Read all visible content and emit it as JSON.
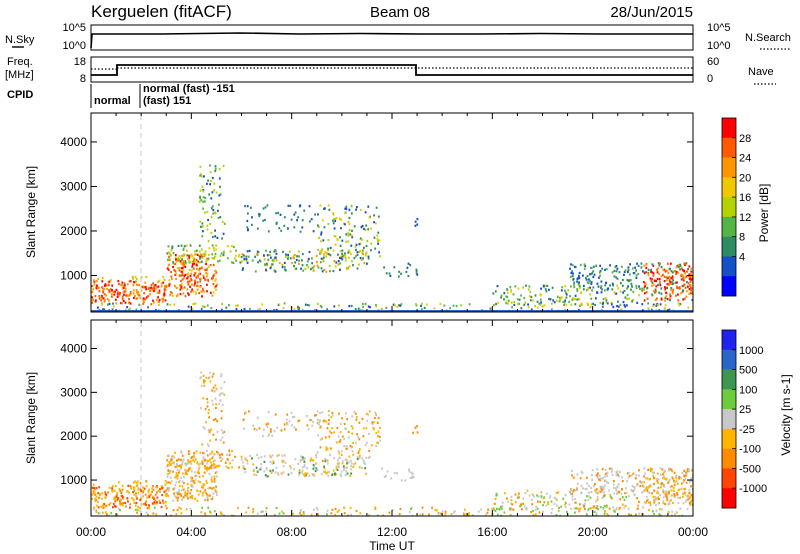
{
  "header": {
    "station": "Kerguelen (fitACF)",
    "beam": "Beam 08",
    "date": "28/Jun/2015"
  },
  "top_panels": {
    "nsky_label": "N.Sky",
    "nsky_ticks": [
      "10^5",
      "10^0"
    ],
    "nsearch_label": "N.Search",
    "nsearch_ticks": [
      "10^5",
      "10^0"
    ],
    "freq_label": "Freq.",
    "freq_unit": "[MHz]",
    "freq_ticks": [
      "18",
      "8"
    ],
    "nave_label": "Nave",
    "nave_ticks": [
      "60",
      "0"
    ],
    "cpid_label": "CPID",
    "cpid_entries": [
      "normal",
      "normal (fast) -151",
      "(fast) 151"
    ]
  },
  "power_colorbar": {
    "label": "Power [dB]",
    "ticks": [
      "28",
      "24",
      "20",
      "16",
      "12",
      "8",
      "4"
    ],
    "colors": [
      "#ff0000",
      "#ff5a00",
      "#ff9600",
      "#f0c800",
      "#b4d200",
      "#55b446",
      "#2d8c64",
      "#1450c8",
      "#0000ff"
    ]
  },
  "velocity_colorbar": {
    "label": "Velocity [m s-1]",
    "ticks": [
      "1000",
      "500",
      "100",
      "25",
      "-25",
      "-100",
      "-500",
      "-1000"
    ],
    "colors": [
      "#2222ee",
      "#2a66c8",
      "#3c9650",
      "#6ccc3c",
      "#c8c8c8",
      "#ffb400",
      "#ff8c00",
      "#ff4600",
      "#ff0000"
    ]
  },
  "chart_data": [
    {
      "type": "heatmap",
      "title": "",
      "xlabel": "Time UT",
      "ylabel": "Slant Range [km]",
      "x_ticks": [
        "00:00",
        "04:00",
        "08:00",
        "12:00",
        "16:00",
        "20:00",
        "00:00"
      ],
      "y_ticks": [
        "1000",
        "2000",
        "3000",
        "4000"
      ],
      "xlim_hours": [
        0,
        24
      ],
      "ylim_km": [
        180,
        4650
      ],
      "colorbar": "Power [dB]"
    },
    {
      "type": "heatmap",
      "title": "",
      "xlabel": "Time UT",
      "ylabel": "Slant Range [km]",
      "x_ticks": [
        "00:00",
        "04:00",
        "08:00",
        "12:00",
        "16:00",
        "20:00",
        "00:00"
      ],
      "y_ticks": [
        "1000",
        "2000",
        "3000",
        "4000"
      ],
      "xlim_hours": [
        0,
        24
      ],
      "ylim_km": [
        180,
        4650
      ],
      "colorbar": "Velocity [m s-1]"
    }
  ]
}
